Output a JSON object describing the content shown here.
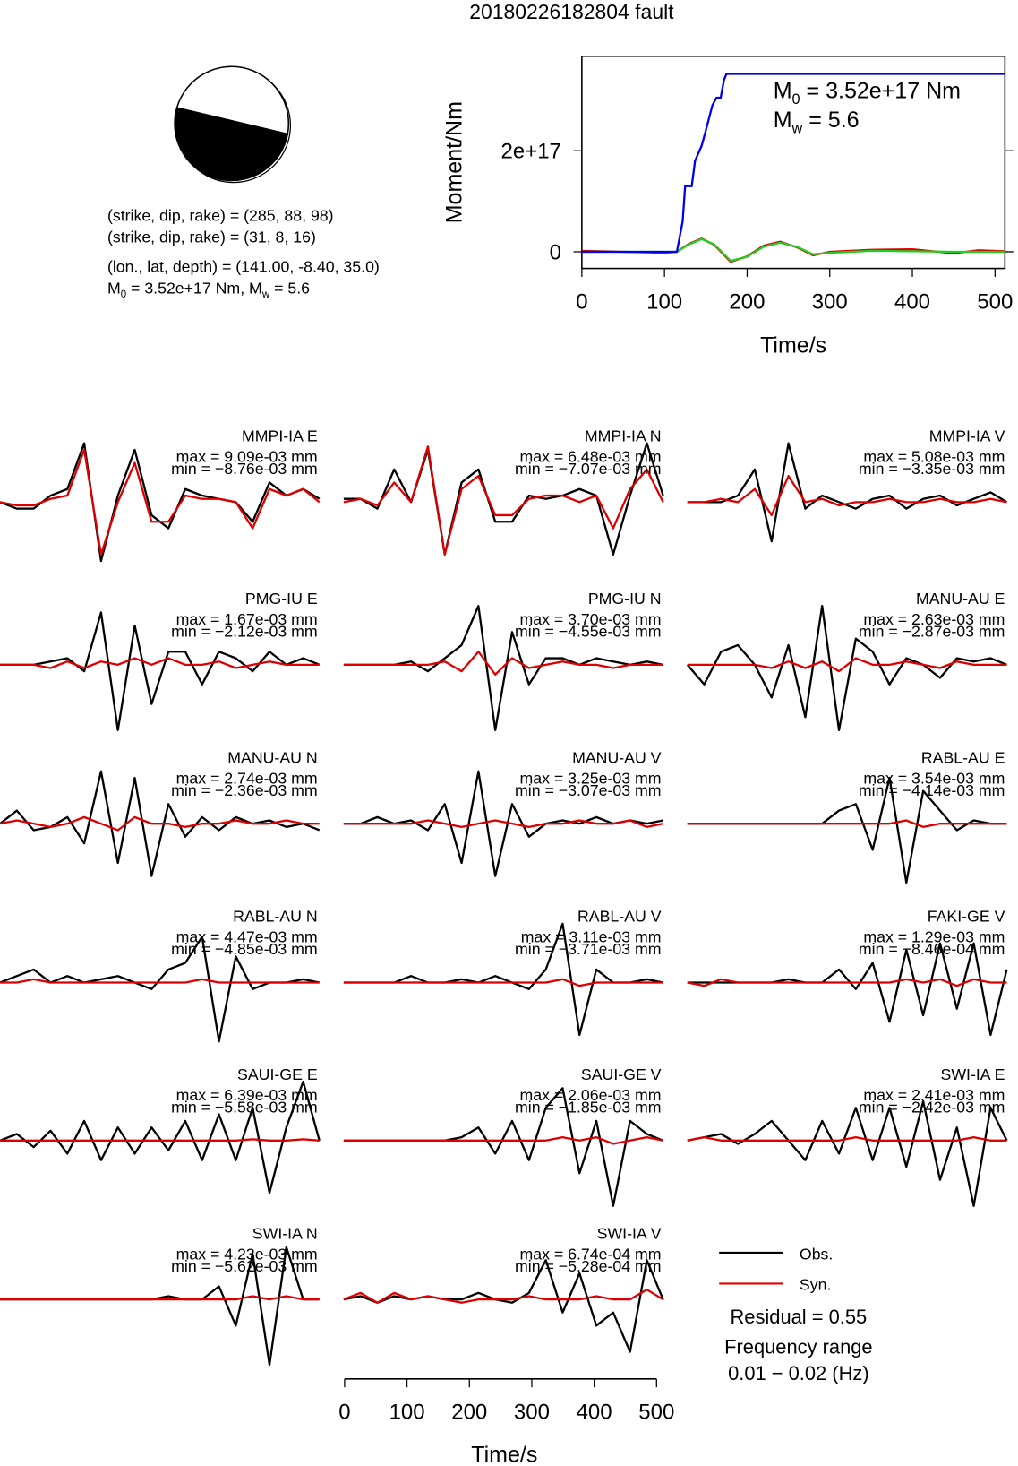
{
  "title": "20180226182804 fault",
  "focal": {
    "lines": [
      "(strike, dip, rake) = (285, 88, 98)",
      "(strike, dip, rake) = (31, 8, 16)",
      "(lon., lat, depth) = (141.00, -8.40, 35.0)"
    ],
    "moment_line": [
      {
        "text": "M"
      },
      {
        "sub": "0"
      },
      {
        "text": " = 3.52e+17 Nm, M"
      },
      {
        "sub": "w"
      },
      {
        "text": " = 5.6"
      }
    ]
  },
  "chart_data": [
    {
      "type": "line",
      "xlabel": "Time/s",
      "ylabel": "Moment/Nm",
      "xlim": [
        0,
        512
      ],
      "xticks": [
        0,
        100,
        200,
        300,
        400,
        500
      ],
      "ylim": [
        -33000000000000000,
        387000000000000000
      ],
      "yticks": [
        0,
        {
          "value": 200000000000000000,
          "label": "2e+17"
        }
      ],
      "annotations": [
        [
          {
            "text": "M"
          },
          {
            "sub": "0"
          },
          {
            "text": " = 3.52e+17 Nm"
          }
        ],
        [
          {
            "text": "M"
          },
          {
            "sub": "w"
          },
          {
            "text": " = 5.6"
          }
        ]
      ],
      "series": [
        {
          "color": "#0000ee",
          "x": [
            0,
            115,
            122,
            125,
            133,
            137,
            145,
            150,
            158,
            163,
            168,
            172,
            175,
            512
          ],
          "values": [
            0,
            0,
            60000000000000000,
            130000000000000000,
            130000000000000000,
            180000000000000000,
            210000000000000000,
            240000000000000000,
            290000000000000000,
            305000000000000000,
            305000000000000000,
            340000000000000000,
            352000000000000000,
            352000000000000000
          ]
        },
        {
          "color": "#22cc22",
          "x": [
            0,
            50,
            100,
            115,
            130,
            145,
            160,
            180,
            200,
            220,
            240,
            260,
            280,
            300,
            350,
            400,
            450,
            480,
            512
          ],
          "values": [
            0,
            0,
            0,
            0,
            15000000000000000,
            25000000000000000,
            15000000000000000,
            -18000000000000000,
            -10000000000000000,
            10000000000000000,
            18000000000000000,
            10000000000000000,
            -5000000000000000,
            -2000000000000000,
            2000000000000000,
            1000000000000000,
            0,
            0,
            0
          ]
        },
        {
          "color": "#dd0000",
          "x": [
            0,
            50,
            100,
            115,
            130,
            145,
            160,
            180,
            200,
            220,
            240,
            260,
            280,
            300,
            350,
            400,
            450,
            480,
            512
          ],
          "values": [
            2000000000000000,
            0,
            -2000000000000000,
            0,
            16000000000000000,
            26000000000000000,
            14000000000000000,
            -20000000000000000,
            -9000000000000000,
            12000000000000000,
            20000000000000000,
            9000000000000000,
            -7000000000000000,
            0,
            4000000000000000,
            5000000000000000,
            -3000000000000000,
            3000000000000000,
            1000000000000000
          ]
        }
      ]
    }
  ],
  "waveforms": {
    "obs_color": "#000000",
    "syn_color": "#dd0000",
    "time": [
      0,
      27,
      54,
      81,
      108,
      135,
      162,
      189,
      216,
      243,
      270,
      297,
      324,
      351,
      378,
      405,
      432,
      459,
      486,
      512
    ],
    "xlabel": "Time/s",
    "xlim": [
      0,
      512
    ],
    "xticks": [
      0,
      100,
      200,
      300,
      400,
      500
    ],
    "stations": [
      {
        "name": "MMPI-IA E",
        "max": "max = 9.09e-03 mm",
        "min": "min = −8.76e-03 mm",
        "obs": [
          0,
          -0.1,
          -0.1,
          0.1,
          0.2,
          0.9,
          -0.9,
          0.1,
          0.8,
          -0.2,
          -0.4,
          0.2,
          0.1,
          0.05,
          0,
          -0.3,
          0.3,
          0.1,
          0.2,
          0.05
        ],
        "syn": [
          0,
          -0.05,
          -0.05,
          0.05,
          0.1,
          0.8,
          -0.8,
          0,
          0.6,
          -0.3,
          -0.3,
          0.1,
          0.05,
          0.05,
          0,
          -0.4,
          0.2,
          0.1,
          0.2,
          0
        ]
      },
      {
        "name": "MMPI-IA N",
        "max": "max = 6.48e-03 mm",
        "min": "min = −7.07e-03 mm",
        "obs": [
          0.05,
          0.05,
          -0.1,
          0.5,
          0,
          0.8,
          -0.8,
          0.3,
          0.5,
          -0.3,
          -0.3,
          0.1,
          0.05,
          0.1,
          0.2,
          0.1,
          -0.8,
          0.1,
          0.9,
          0.1
        ],
        "syn": [
          0,
          0.05,
          -0.05,
          0.3,
          0,
          0.85,
          -0.8,
          0.2,
          0.4,
          -0.2,
          -0.2,
          0.05,
          0.1,
          0.1,
          0,
          0.1,
          -0.4,
          0.2,
          0.5,
          0
        ]
      },
      {
        "name": "MMPI-IA V",
        "max": "max = 5.08e-03 mm",
        "min": "min = −3.35e-03 mm",
        "obs": [
          0,
          0,
          0,
          0.1,
          0.5,
          -0.6,
          0.9,
          -0.1,
          0.1,
          0,
          -0.1,
          0.05,
          0.1,
          -0.1,
          0.05,
          0.1,
          -0.05,
          0.05,
          0.15,
          0
        ],
        "syn": [
          0,
          0,
          0.05,
          0,
          0.2,
          -0.2,
          0.4,
          0,
          0.05,
          -0.05,
          0,
          0,
          0.05,
          0,
          0,
          0.05,
          0,
          0,
          0.05,
          0
        ]
      },
      {
        "name": "PMG-IU E",
        "max": "max = 1.67e-03 mm",
        "min": "min = −2.12e-03 mm",
        "obs": [
          0,
          0,
          0,
          0.05,
          0.1,
          -0.1,
          0.8,
          -1,
          0.6,
          -0.6,
          0.2,
          0.2,
          -0.3,
          0.2,
          0.1,
          -0.1,
          0.2,
          0,
          0.1,
          0
        ],
        "syn": [
          0,
          0,
          0,
          -0.05,
          0.05,
          -0.05,
          0.05,
          0,
          0.1,
          0,
          0.1,
          0,
          0,
          0.05,
          -0.05,
          0,
          0.05,
          0,
          0,
          0
        ]
      },
      {
        "name": "PMG-IU N",
        "max": "max = 3.70e-03 mm",
        "min": "min = −4.55e-03 mm",
        "obs": [
          0,
          0,
          0,
          0,
          0.05,
          -0.1,
          0.1,
          0.3,
          0.9,
          -1,
          0.5,
          -0.3,
          0.1,
          0.1,
          0,
          0.1,
          0.05,
          0,
          0.05,
          0
        ],
        "syn": [
          0,
          0,
          0,
          0,
          0,
          0,
          0.05,
          -0.1,
          0.2,
          -0.15,
          0.1,
          -0.05,
          0,
          0.05,
          0,
          0,
          -0.05,
          0,
          0,
          0
        ]
      },
      {
        "name": "MANU-AU E",
        "max": "max = 2.63e-03 mm",
        "min": "min = −2.87e-03 mm",
        "obs": [
          0,
          -0.3,
          0.2,
          0.3,
          0,
          -0.5,
          0.3,
          -0.8,
          0.9,
          -1,
          0.4,
          0.2,
          -0.3,
          0.1,
          0,
          -0.2,
          0.1,
          0.05,
          0.1,
          0
        ],
        "syn": [
          0,
          0,
          0,
          0,
          0,
          -0.05,
          0.05,
          -0.05,
          0.05,
          -0.1,
          0.1,
          0,
          0,
          0.05,
          0,
          -0.05,
          0.05,
          0,
          0,
          0
        ]
      },
      {
        "name": "MANU-AU N",
        "max": "max = 2.74e-03 mm",
        "min": "min = −2.36e-03 mm",
        "obs": [
          0,
          0.2,
          -0.1,
          -0.05,
          0.1,
          -0.3,
          0.8,
          -0.6,
          0.7,
          -0.8,
          0.3,
          -0.2,
          0.1,
          -0.1,
          0.1,
          0,
          0.05,
          -0.05,
          0,
          -0.1
        ],
        "syn": [
          0,
          0.05,
          0,
          -0.05,
          0,
          0.1,
          0,
          -0.1,
          0.1,
          0,
          0,
          -0.05,
          0,
          0,
          0.05,
          0,
          0,
          0.05,
          0,
          0
        ]
      },
      {
        "name": "MANU-AU V",
        "max": "max = 3.25e-03 mm",
        "min": "min = −3.07e-03 mm",
        "obs": [
          0,
          0,
          0.1,
          0,
          0.05,
          -0.1,
          0.3,
          -0.6,
          0.8,
          -0.8,
          0.3,
          -0.2,
          0,
          0.05,
          0,
          0.1,
          0,
          0.05,
          0,
          0.05
        ],
        "syn": [
          0,
          0,
          0,
          0,
          0,
          0.05,
          0,
          -0.05,
          0,
          0.05,
          0,
          -0.05,
          0,
          0,
          0.05,
          0,
          0,
          0.05,
          -0.05,
          0
        ]
      },
      {
        "name": "RABL-AU E",
        "max": "max = 3.54e-03 mm",
        "min": "min = −4.14e-03 mm",
        "obs": [
          0,
          0,
          0,
          0,
          0,
          0,
          0,
          0,
          0,
          0.2,
          0.3,
          -0.4,
          0.7,
          -0.9,
          0.5,
          0.2,
          -0.1,
          0.05,
          0,
          0
        ],
        "syn": [
          0,
          0,
          0,
          0,
          0,
          0,
          0,
          0,
          0,
          0,
          0,
          0,
          0,
          0.05,
          -0.05,
          0,
          0,
          0,
          0,
          0
        ]
      },
      {
        "name": "RABL-AU N",
        "max": "max = 4.47e-03 mm",
        "min": "min = −4.85e-03 mm",
        "obs": [
          0,
          0.1,
          0.2,
          0,
          0.1,
          0,
          0.05,
          0.1,
          0,
          -0.1,
          0.2,
          0.3,
          0.7,
          -0.9,
          0.4,
          -0.1,
          0,
          0,
          0.05,
          0
        ],
        "syn": [
          0,
          0,
          0.05,
          0,
          0,
          0,
          0,
          0,
          0,
          0,
          0,
          0,
          0.05,
          0,
          0,
          0,
          0,
          0,
          0,
          0
        ]
      },
      {
        "name": "RABL-AU V",
        "max": "max = 3.11e-03 mm",
        "min": "min = −3.71e-03 mm",
        "obs": [
          0,
          0,
          0,
          0,
          0.1,
          0,
          0,
          0.05,
          0,
          0.1,
          0,
          -0.1,
          0.2,
          0.9,
          -0.8,
          0.2,
          0,
          0,
          0.05,
          0
        ],
        "syn": [
          0,
          0,
          0,
          0,
          0,
          0,
          0,
          0,
          0,
          0,
          0,
          0,
          0,
          0.05,
          -0.05,
          0,
          0,
          0,
          0,
          0
        ]
      },
      {
        "name": "FAKI-GE V",
        "max": "max = 1.29e-03 mm",
        "min": "min = −8.46e-04 mm",
        "obs": [
          0,
          0,
          0,
          0,
          0,
          0,
          0.05,
          0,
          0,
          0.2,
          -0.1,
          0.3,
          -0.6,
          0.5,
          -0.5,
          0.6,
          -0.4,
          0.6,
          -0.8,
          0.2
        ],
        "syn": [
          0,
          -0.05,
          0.05,
          0,
          0,
          0,
          0,
          0,
          0,
          0,
          0,
          0,
          0,
          0.05,
          0,
          0.05,
          -0.05,
          0.05,
          0,
          0
        ]
      },
      {
        "name": "SAUI-GE E",
        "max": "max = 6.39e-03 mm",
        "min": "min = −5.58e-03 mm",
        "obs": [
          0,
          0.1,
          -0.1,
          0.15,
          -0.2,
          0.3,
          -0.3,
          0.2,
          -0.2,
          0.2,
          -0.15,
          0.3,
          -0.3,
          0.4,
          -0.3,
          0.5,
          -0.8,
          0.2,
          0.9,
          0
        ],
        "syn": [
          0,
          0,
          0,
          0,
          0,
          0,
          0,
          0,
          0,
          0,
          0,
          0,
          0,
          0,
          0,
          0.02,
          0,
          0,
          0.02,
          0
        ]
      },
      {
        "name": "SAUI-GE V",
        "max": "max = 2.06e-03 mm",
        "min": "min = −1.85e-03 mm",
        "obs": [
          0,
          0,
          0,
          0,
          0,
          0,
          0,
          0.05,
          0.2,
          -0.2,
          0.3,
          -0.3,
          0.5,
          0.8,
          -0.5,
          0.3,
          -1,
          0.3,
          0.1,
          0
        ],
        "syn": [
          0,
          0,
          0,
          0,
          0,
          0,
          0,
          0,
          0,
          0,
          0,
          0,
          0,
          0.05,
          0,
          0.05,
          -0.05,
          0,
          0.05,
          0
        ]
      },
      {
        "name": "SWI-IA E",
        "max": "max = 2.41e-03 mm",
        "min": "min = −2.42e-03 mm",
        "obs": [
          0,
          0.05,
          0.1,
          -0.05,
          0.1,
          0.3,
          0,
          -0.3,
          0.3,
          -0.2,
          0.5,
          -0.3,
          0.5,
          -0.4,
          0.6,
          -0.6,
          0.2,
          -1,
          0.5,
          0
        ],
        "syn": [
          0,
          0.05,
          0,
          0,
          0,
          0,
          0,
          0,
          0,
          0,
          0.05,
          0,
          0,
          0,
          0,
          0,
          0,
          0.05,
          0,
          0
        ]
      },
      {
        "name": "SWI-IA N",
        "max": "max = 4.23e-03 mm",
        "min": "min = −5.62e-03 mm",
        "obs": [
          0,
          0,
          0,
          0,
          0,
          0,
          0,
          0,
          0,
          0,
          0.05,
          0,
          0,
          0.2,
          -0.4,
          0.7,
          -1,
          0.8,
          0,
          0
        ],
        "syn": [
          0,
          0,
          0,
          0,
          0,
          0,
          0,
          0,
          0,
          0,
          0,
          0,
          0,
          0,
          0,
          0.05,
          0,
          0.05,
          0,
          0
        ]
      },
      {
        "name": "SWI-IA V",
        "max": "max = 6.74e-04 mm",
        "min": "min = −5.28e-04 mm",
        "obs": [
          0,
          0.05,
          -0.05,
          0.05,
          0,
          0.05,
          0,
          0,
          0.1,
          0,
          -0.05,
          0.1,
          0.6,
          -0.2,
          0.4,
          -0.4,
          -0.2,
          -0.8,
          0.6,
          0
        ],
        "syn": [
          0,
          0.1,
          -0.05,
          0.1,
          0,
          0.05,
          0,
          -0.05,
          0,
          0,
          0,
          0.05,
          0,
          0,
          0,
          0.05,
          0,
          0,
          0.15,
          0
        ]
      }
    ],
    "legend": {
      "obs": "Obs.",
      "syn": "Syn."
    },
    "residual": "Residual = 0.55",
    "frequency_label": "Frequency range",
    "frequency_range": "0.01 − 0.02 (Hz)"
  }
}
